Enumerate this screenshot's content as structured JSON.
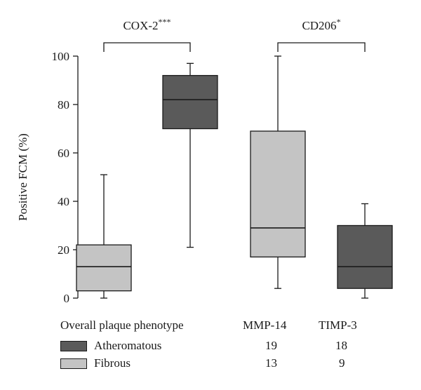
{
  "chart_data": {
    "type": "boxplot",
    "ylabel": "Positive FCM (%)",
    "ylim": [
      0,
      100
    ],
    "yticks": [
      0,
      20,
      40,
      60,
      80,
      100
    ],
    "groups": [
      {
        "marker": "MMP-14",
        "significance": {
          "label": "COX-2",
          "stars": "***"
        },
        "boxes": [
          {
            "phenotype": "Fibrous",
            "min": 0,
            "q1": 3,
            "median": 13,
            "q3": 22,
            "max": 51
          },
          {
            "phenotype": "Atheromatous",
            "min": 21,
            "q1": 70,
            "median": 82,
            "q3": 92,
            "max": 97
          }
        ]
      },
      {
        "marker": "TIMP-3",
        "significance": {
          "label": "CD206",
          "stars": "*"
        },
        "boxes": [
          {
            "phenotype": "Fibrous",
            "min": 4,
            "q1": 17,
            "median": 29,
            "q3": 69,
            "max": 100
          },
          {
            "phenotype": "Atheromatous",
            "min": 0,
            "q1": 4,
            "median": 13,
            "q3": 30,
            "max": 39
          }
        ]
      }
    ],
    "table": {
      "title": "Overall plaque phenotype",
      "columns": [
        "MMP-14",
        "TIMP-3"
      ],
      "rows": [
        {
          "label": "Atheromatous",
          "color": "#5a5a5a",
          "values": [
            "19",
            "18"
          ]
        },
        {
          "label": "Fibrous",
          "color": "#c4c4c4",
          "values": [
            "13",
            "9"
          ]
        }
      ]
    }
  },
  "colors": {
    "Atheromatous": "#5a5a5a",
    "Fibrous": "#c4c4c4",
    "line": "#1a1a1a"
  }
}
